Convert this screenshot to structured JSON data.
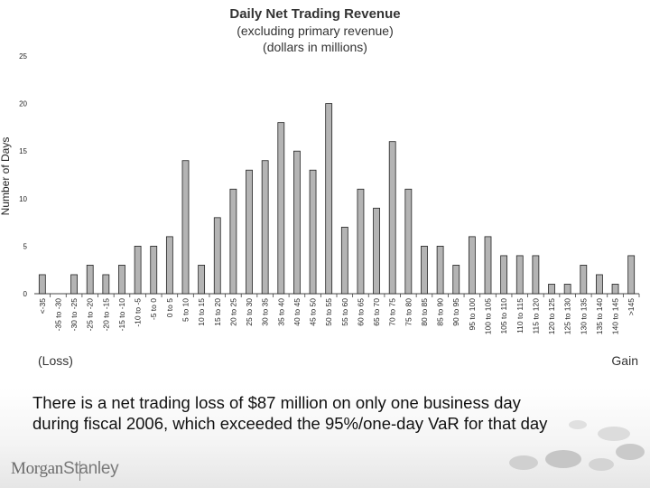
{
  "chart_data": {
    "type": "bar",
    "title": "Daily Net Trading Revenue",
    "subtitle_lines": [
      "(excluding primary revenue)",
      "(dollars in millions)"
    ],
    "ylabel": "Number of Days",
    "ylim": [
      0,
      25
    ],
    "yticks": [
      0,
      5,
      10,
      15,
      20,
      25
    ],
    "grid": false,
    "left_label": "(Loss)",
    "right_label": "Gain",
    "categories": [
      "<-35",
      "-35 to -30",
      "-30 to -25",
      "-25 to -20",
      "-20 to -15",
      "-15 to -10",
      "-10 to -5",
      "-5 to 0",
      "0 to 5",
      "5 to 10",
      "10 to 15",
      "15 to 20",
      "20 to 25",
      "25 to 30",
      "30 to 35",
      "35 to 40",
      "40 to 45",
      "45 to 50",
      "50 to 55",
      "55 to 60",
      "60 to 65",
      "65 to 70",
      "70 to 75",
      "75 to 80",
      "80 to 85",
      "85 to 90",
      "90 to 95",
      "95 to 100",
      "100 to 105",
      "105 to 110",
      "110 to 115",
      "115 to 120",
      "120 to 125",
      "125 to 130",
      "130 to 135",
      "135 to 140",
      "140 to 145",
      ">145"
    ],
    "values": [
      2,
      0,
      2,
      3,
      2,
      3,
      5,
      5,
      6,
      14,
      3,
      8,
      11,
      13,
      14,
      18,
      15,
      13,
      20,
      7,
      11,
      9,
      16,
      11,
      5,
      5,
      3,
      6,
      6,
      4,
      4,
      4,
      1,
      1,
      3,
      2,
      1,
      4
    ]
  },
  "caption": {
    "line1": "There is a net trading loss of $87 million on only one business day",
    "line2": "during fiscal 2006, which exceeded the 95%/one-day VaR for that day"
  },
  "logo": {
    "part1": "Morgan",
    "part2": "Stanley"
  },
  "colors": {
    "bar_fill": "#b4b4b4",
    "bar_stroke": "#222222",
    "axis": "#444444"
  }
}
